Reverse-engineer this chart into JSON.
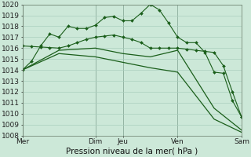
{
  "bg_color": "#cce8d8",
  "grid_color": "#aacfbe",
  "line_color": "#1a5e1a",
  "title": "Pression niveau de la mer( hPa )",
  "ylabel_values": [
    1008,
    1009,
    1010,
    1011,
    1012,
    1013,
    1014,
    1015,
    1016,
    1017,
    1018,
    1019,
    1020
  ],
  "day_labels": [
    "Mer",
    "Dim",
    "Jeu",
    "Ven",
    "Sam"
  ],
  "day_positions": [
    0,
    8,
    11,
    17,
    24
  ],
  "series1": {
    "x": [
      0,
      1,
      2,
      3,
      4,
      5,
      6,
      7,
      8,
      9,
      10,
      11,
      12,
      13,
      14,
      15,
      16,
      17,
      18,
      19,
      20,
      21,
      22,
      23,
      24
    ],
    "y": [
      1014.0,
      1014.8,
      1016.2,
      1017.3,
      1017.0,
      1018.0,
      1017.8,
      1017.8,
      1018.1,
      1018.8,
      1018.9,
      1018.5,
      1018.5,
      1019.2,
      1020.0,
      1019.5,
      1018.3,
      1017.0,
      1016.5,
      1016.5,
      1015.6,
      1013.8,
      1013.7,
      1011.2,
      1009.7
    ]
  },
  "series2": {
    "x": [
      0,
      1,
      2,
      3,
      4,
      5,
      6,
      7,
      8,
      9,
      10,
      11,
      12,
      13,
      14,
      15,
      16,
      17,
      18,
      19,
      20,
      21,
      22,
      23,
      24
    ],
    "y": [
      1016.2,
      1016.15,
      1016.1,
      1016.05,
      1016.0,
      1016.2,
      1016.5,
      1016.8,
      1017.0,
      1017.1,
      1017.2,
      1017.0,
      1016.8,
      1016.5,
      1016.0,
      1016.0,
      1016.0,
      1016.0,
      1015.9,
      1015.8,
      1015.7,
      1015.6,
      1014.4,
      1012.0,
      1009.7
    ]
  },
  "series3": {
    "x": [
      0,
      4,
      8,
      11,
      14,
      17,
      21,
      24
    ],
    "y": [
      1014.0,
      1015.8,
      1016.0,
      1015.5,
      1015.2,
      1015.8,
      1010.5,
      1008.5
    ]
  },
  "series4": {
    "x": [
      0,
      4,
      8,
      11,
      14,
      17,
      21,
      24
    ],
    "y": [
      1014.0,
      1015.5,
      1015.2,
      1014.7,
      1014.2,
      1013.8,
      1009.5,
      1008.3
    ]
  },
  "vline_positions": [
    0,
    8,
    11,
    17,
    24
  ],
  "vline_color": "#556655",
  "title_fontsize": 7.5,
  "tick_fontsize": 6.5
}
